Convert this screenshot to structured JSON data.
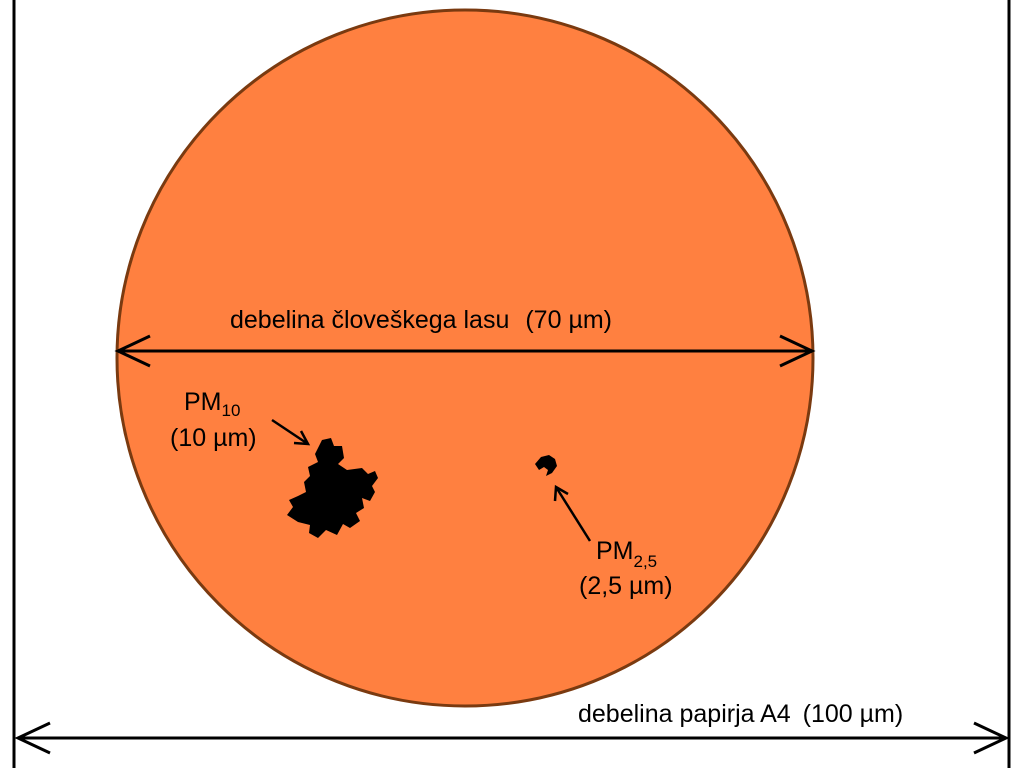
{
  "colors": {
    "hair_fill": "#FF8040",
    "hair_outline": "#7A3A10",
    "particle": "#000000",
    "background": "#FFFFFF",
    "lines": "#000000"
  },
  "hair": {
    "label": "debelina človeškega lasu",
    "value": "(70 µm)",
    "diameter_um": 70
  },
  "paper": {
    "label": "debelina papirja A4",
    "value": "(100 µm)",
    "thickness_um": 100
  },
  "pm10": {
    "name": "PM",
    "subscript": "10",
    "value": "(10 µm)",
    "size_um": 10
  },
  "pm25": {
    "name": "PM",
    "subscript": "2,5",
    "value": "(2,5 µm)",
    "size_um": 2.5
  }
}
